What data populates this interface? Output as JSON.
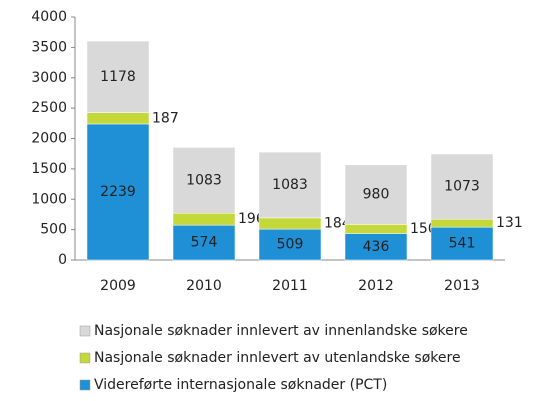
{
  "chart_data": {
    "type": "stacked_bar",
    "categories": [
      "2009",
      "2010",
      "2011",
      "2012",
      "2013"
    ],
    "series": [
      {
        "name": "Videreførte internasjonale søknader (PCT)",
        "color": "#1f8fd6",
        "values": [
          2239,
          574,
          509,
          436,
          541
        ]
      },
      {
        "name": "Nasjonale søknader innlevert av utenlandske søkere",
        "color": "#c4d83a",
        "values": [
          187,
          196,
          184,
          150,
          131
        ]
      },
      {
        "name": "Nasjonale søknader innlevert av innenlandske søkere",
        "color": "#d9d9d9",
        "values": [
          1178,
          1083,
          1083,
          980,
          1073
        ]
      }
    ],
    "ylim": [
      0,
      4000
    ],
    "yticks": [
      0,
      500,
      1000,
      1500,
      2000,
      2500,
      3000,
      3500,
      4000
    ],
    "grid": false
  }
}
